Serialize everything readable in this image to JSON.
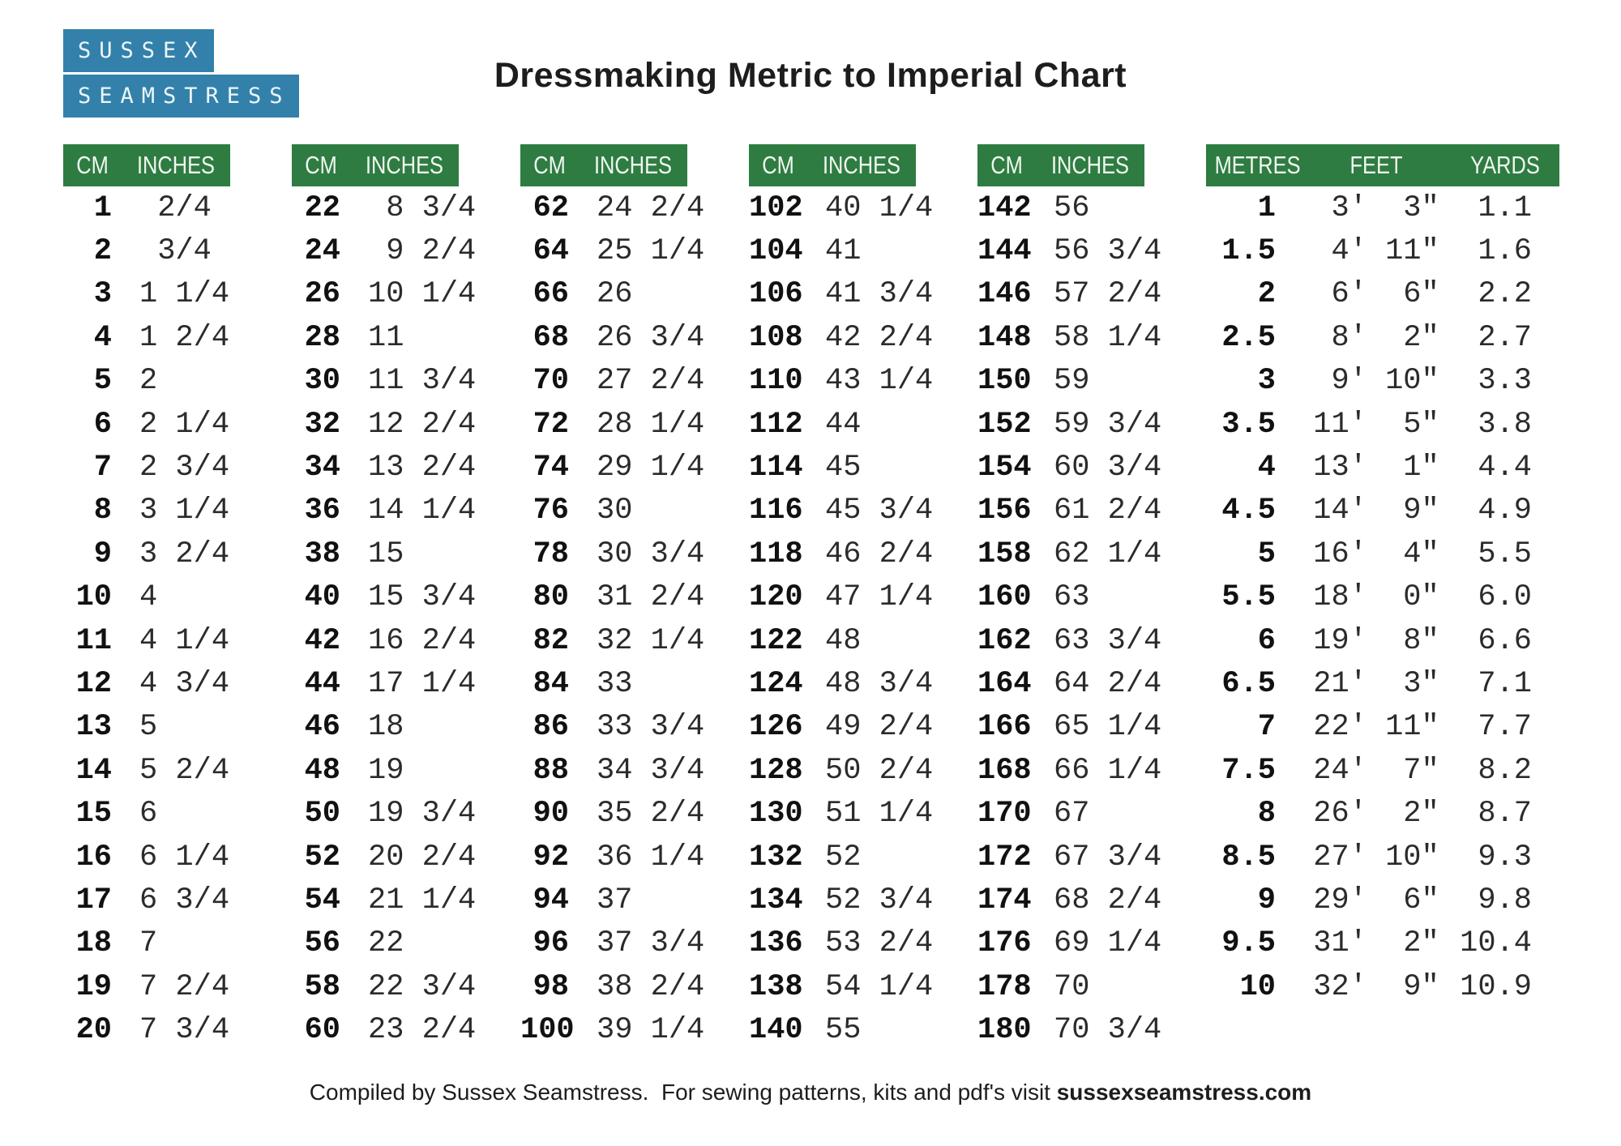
{
  "logo": {
    "line1": "SUSSEX",
    "line2": "SEAMSTRESS"
  },
  "title": "Dressmaking Metric to Imperial Chart",
  "footer": {
    "prefix": "Compiled by Sussex Seamstress.  For sewing patterns, kits and pdf's visit ",
    "site": "sussexseamstress.com"
  },
  "colors": {
    "header_green": "#2e7c41",
    "logo_blue": "#3381aa"
  },
  "tables": [
    {
      "headers": [
        "CM",
        "INCHES"
      ],
      "col_names": [
        "cm-value",
        "inches-value"
      ],
      "rows": [
        [
          "1",
          " 2/4"
        ],
        [
          "2",
          " 3/4"
        ],
        [
          "3",
          "1 1/4"
        ],
        [
          "4",
          "1 2/4"
        ],
        [
          "5",
          "2"
        ],
        [
          "6",
          "2 1/4"
        ],
        [
          "7",
          "2 3/4"
        ],
        [
          "8",
          "3 1/4"
        ],
        [
          "9",
          "3 2/4"
        ],
        [
          "10",
          "4"
        ],
        [
          "11",
          "4 1/4"
        ],
        [
          "12",
          "4 3/4"
        ],
        [
          "13",
          "5"
        ],
        [
          "14",
          "5 2/4"
        ],
        [
          "15",
          "6"
        ],
        [
          "16",
          "6 1/4"
        ],
        [
          "17",
          "6 3/4"
        ],
        [
          "18",
          "7"
        ],
        [
          "19",
          "7 2/4"
        ],
        [
          "20",
          "7 3/4"
        ]
      ]
    },
    {
      "headers": [
        "CM",
        "INCHES"
      ],
      "col_names": [
        "cm-value",
        "inches-value"
      ],
      "rows": [
        [
          "22",
          " 8 3/4"
        ],
        [
          "24",
          " 9 2/4"
        ],
        [
          "26",
          "10 1/4"
        ],
        [
          "28",
          "11"
        ],
        [
          "30",
          "11 3/4"
        ],
        [
          "32",
          "12 2/4"
        ],
        [
          "34",
          "13 2/4"
        ],
        [
          "36",
          "14 1/4"
        ],
        [
          "38",
          "15"
        ],
        [
          "40",
          "15 3/4"
        ],
        [
          "42",
          "16 2/4"
        ],
        [
          "44",
          "17 1/4"
        ],
        [
          "46",
          "18"
        ],
        [
          "48",
          "19"
        ],
        [
          "50",
          "19 3/4"
        ],
        [
          "52",
          "20 2/4"
        ],
        [
          "54",
          "21 1/4"
        ],
        [
          "56",
          "22"
        ],
        [
          "58",
          "22 3/4"
        ],
        [
          "60",
          "23 2/4"
        ]
      ]
    },
    {
      "headers": [
        "CM",
        "INCHES"
      ],
      "col_names": [
        "cm-value",
        "inches-value"
      ],
      "rows": [
        [
          "62",
          "24 2/4"
        ],
        [
          "64",
          "25 1/4"
        ],
        [
          "66",
          "26"
        ],
        [
          "68",
          "26 3/4"
        ],
        [
          "70",
          "27 2/4"
        ],
        [
          "72",
          "28 1/4"
        ],
        [
          "74",
          "29 1/4"
        ],
        [
          "76",
          "30"
        ],
        [
          "78",
          "30 3/4"
        ],
        [
          "80",
          "31 2/4"
        ],
        [
          "82",
          "32 1/4"
        ],
        [
          "84",
          "33"
        ],
        [
          "86",
          "33 3/4"
        ],
        [
          "88",
          "34 3/4"
        ],
        [
          "90",
          "35 2/4"
        ],
        [
          "92",
          "36 1/4"
        ],
        [
          "94",
          "37"
        ],
        [
          "96",
          "37 3/4"
        ],
        [
          "98",
          "38 2/4"
        ],
        [
          "100",
          "39 1/4"
        ]
      ]
    },
    {
      "headers": [
        "CM",
        "INCHES"
      ],
      "col_names": [
        "cm-value",
        "inches-value"
      ],
      "rows": [
        [
          "102",
          "40 1/4"
        ],
        [
          "104",
          "41"
        ],
        [
          "106",
          "41 3/4"
        ],
        [
          "108",
          "42 2/4"
        ],
        [
          "110",
          "43 1/4"
        ],
        [
          "112",
          "44"
        ],
        [
          "114",
          "45"
        ],
        [
          "116",
          "45 3/4"
        ],
        [
          "118",
          "46 2/4"
        ],
        [
          "120",
          "47 1/4"
        ],
        [
          "122",
          "48"
        ],
        [
          "124",
          "48 3/4"
        ],
        [
          "126",
          "49 2/4"
        ],
        [
          "128",
          "50 2/4"
        ],
        [
          "130",
          "51 1/4"
        ],
        [
          "132",
          "52"
        ],
        [
          "134",
          "52 3/4"
        ],
        [
          "136",
          "53 2/4"
        ],
        [
          "138",
          "54 1/4"
        ],
        [
          "140",
          "55"
        ]
      ]
    },
    {
      "headers": [
        "CM",
        "INCHES"
      ],
      "col_names": [
        "cm-value",
        "inches-value"
      ],
      "rows": [
        [
          "142",
          "56"
        ],
        [
          "144",
          "56 3/4"
        ],
        [
          "146",
          "57 2/4"
        ],
        [
          "148",
          "58 1/4"
        ],
        [
          "150",
          "59"
        ],
        [
          "152",
          "59 3/4"
        ],
        [
          "154",
          "60 3/4"
        ],
        [
          "156",
          "61 2/4"
        ],
        [
          "158",
          "62 1/4"
        ],
        [
          "160",
          "63"
        ],
        [
          "162",
          "63 3/4"
        ],
        [
          "164",
          "64 2/4"
        ],
        [
          "166",
          "65 1/4"
        ],
        [
          "168",
          "66 1/4"
        ],
        [
          "170",
          "67"
        ],
        [
          "172",
          "67 3/4"
        ],
        [
          "174",
          "68 2/4"
        ],
        [
          "176",
          "69 1/4"
        ],
        [
          "178",
          "70"
        ],
        [
          "180",
          "70 3/4"
        ]
      ]
    },
    {
      "headers": [
        "METRES",
        "FEET",
        "YARDS"
      ],
      "col_names": [
        "metres-value",
        "feet-value",
        "yards-value"
      ],
      "rows": [
        [
          "1",
          " 3'  3\"",
          "1.1"
        ],
        [
          "1.5",
          " 4' 11\"",
          "1.6"
        ],
        [
          "2",
          " 6'  6\"",
          "2.2"
        ],
        [
          "2.5",
          " 8'  2\"",
          "2.7"
        ],
        [
          "3",
          " 9' 10\"",
          "3.3"
        ],
        [
          "3.5",
          "11'  5\"",
          "3.8"
        ],
        [
          "4",
          "13'  1\"",
          "4.4"
        ],
        [
          "4.5",
          "14'  9\"",
          "4.9"
        ],
        [
          "5",
          "16'  4\"",
          "5.5"
        ],
        [
          "5.5",
          "18'  0\"",
          "6.0"
        ],
        [
          "6",
          "19'  8\"",
          "6.6"
        ],
        [
          "6.5",
          "21'  3\"",
          "7.1"
        ],
        [
          "7",
          "22' 11\"",
          "7.7"
        ],
        [
          "7.5",
          "24'  7\"",
          "8.2"
        ],
        [
          "8",
          "26'  2\"",
          "8.7"
        ],
        [
          "8.5",
          "27' 10\"",
          "9.3"
        ],
        [
          "9",
          "29'  6\"",
          "9.8"
        ],
        [
          "9.5",
          "31'  2\"",
          "10.4"
        ],
        [
          "10",
          "32'  9\"",
          "10.9"
        ]
      ]
    }
  ]
}
